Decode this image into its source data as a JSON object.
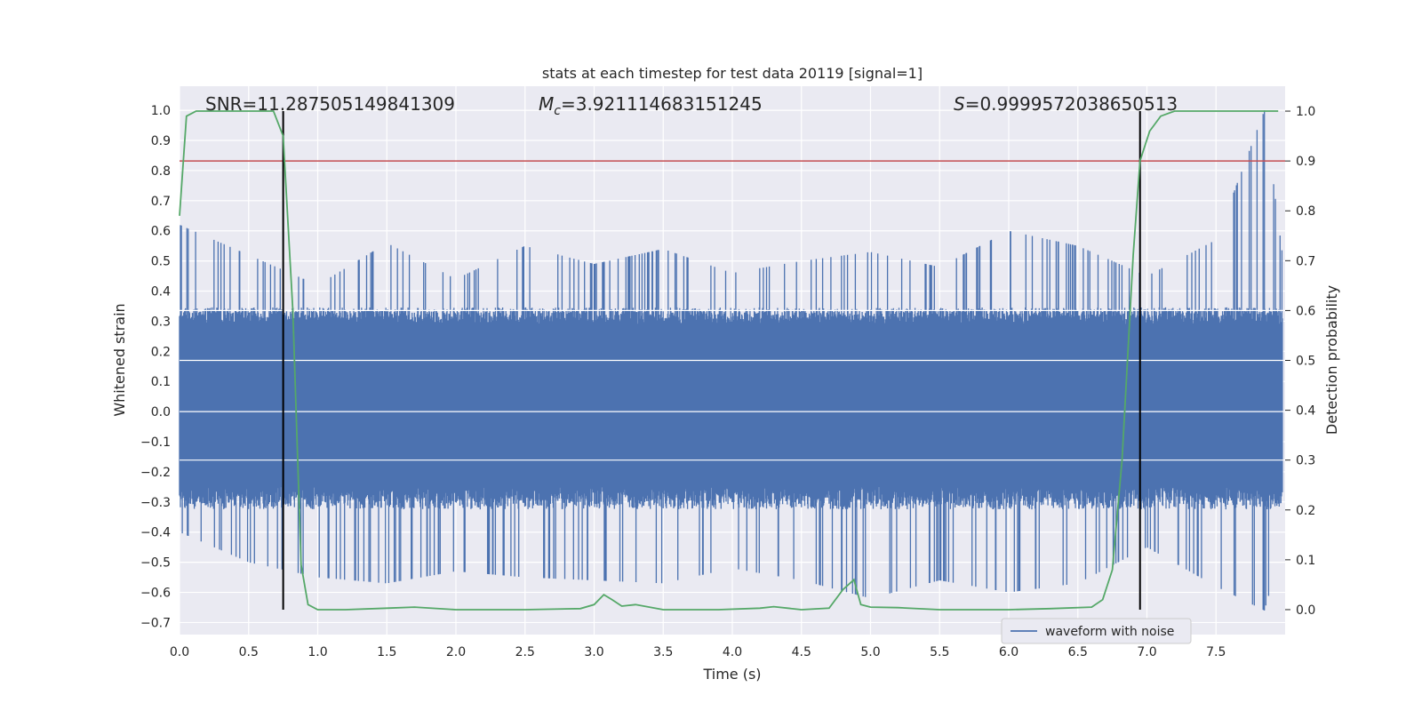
{
  "chart_data": {
    "type": "line",
    "title": "stats at each timestep for test data 20119 [signal=1]",
    "xlabel": "Time (s)",
    "ylabel": "Whitened strain",
    "y2label": "Detection probability",
    "xlim": [
      0.0,
      8.0
    ],
    "ylim": [
      -0.74,
      1.08
    ],
    "y2lim": [
      -0.05,
      1.05
    ],
    "x_ticks": [
      "0.0",
      "0.5",
      "1.0",
      "1.5",
      "2.0",
      "2.5",
      "3.0",
      "3.5",
      "4.0",
      "4.5",
      "5.0",
      "5.5",
      "6.0",
      "6.5",
      "7.0",
      "7.5"
    ],
    "y_ticks": [
      "1.0",
      "0.9",
      "0.8",
      "0.7",
      "0.6",
      "0.5",
      "0.4",
      "0.3",
      "0.2",
      "0.1",
      "0.0",
      "−0.1",
      "−0.2",
      "−0.3",
      "−0.4",
      "−0.5",
      "−0.6",
      "−0.7"
    ],
    "y2_ticks": [
      "1.0",
      "0.9",
      "0.8",
      "0.7",
      "0.6",
      "0.5",
      "0.4",
      "0.3",
      "0.2",
      "0.1",
      "0.0"
    ],
    "annotations": {
      "snr": "SNR=11.287505149841309",
      "mc_symbol": "M",
      "mc_sub": "c",
      "mc_value": "=3.921114683151245",
      "s_symbol": "S",
      "s_value": "=0.9999572038650513"
    },
    "threshold": 0.9,
    "vertical_lines_x": [
      0.75,
      6.95
    ],
    "series": [
      {
        "name": "waveform with noise",
        "axis": "left",
        "color": "#4c72b0",
        "description_values": "noise envelope approx ±0.3 with spikes up to 1.0 near t=7.85",
        "envelope": {
          "x": [
            0.0,
            0.5,
            1.0,
            1.5,
            2.0,
            2.5,
            3.0,
            3.5,
            4.0,
            4.5,
            5.0,
            5.5,
            6.0,
            6.5,
            7.0,
            7.5,
            7.85,
            8.0
          ],
          "max": [
            0.62,
            0.52,
            0.42,
            0.56,
            0.44,
            0.55,
            0.49,
            0.54,
            0.46,
            0.5,
            0.53,
            0.48,
            0.6,
            0.55,
            0.45,
            0.57,
            1.0,
            0.45
          ],
          "min": [
            -0.4,
            -0.5,
            -0.55,
            -0.57,
            -0.53,
            -0.55,
            -0.56,
            -0.57,
            -0.52,
            -0.56,
            -0.62,
            -0.56,
            -0.6,
            -0.57,
            -0.45,
            -0.58,
            -0.66,
            -0.42
          ]
        }
      },
      {
        "name": "",
        "axis": "right",
        "color": "#55a868",
        "x": [
          0.0,
          0.05,
          0.12,
          0.2,
          0.4,
          0.6,
          0.68,
          0.75,
          0.82,
          0.88,
          0.93,
          1.0,
          1.2,
          1.5,
          1.7,
          2.0,
          2.5,
          2.9,
          3.0,
          3.07,
          3.13,
          3.2,
          3.3,
          3.5,
          3.9,
          4.2,
          4.3,
          4.5,
          4.7,
          4.8,
          4.88,
          4.93,
          5.0,
          5.2,
          5.5,
          6.0,
          6.3,
          6.6,
          6.68,
          6.75,
          6.82,
          6.9,
          6.95,
          7.02,
          7.1,
          7.2,
          7.3,
          7.5,
          7.95
        ],
        "values": [
          0.79,
          0.99,
          1.0,
          1.0,
          1.0,
          1.0,
          1.0,
          0.95,
          0.6,
          0.09,
          0.01,
          0.0,
          0.0,
          0.003,
          0.005,
          0.0,
          0.0,
          0.002,
          0.01,
          0.03,
          0.02,
          0.007,
          0.01,
          0.0,
          0.0,
          0.003,
          0.006,
          0.0,
          0.003,
          0.04,
          0.06,
          0.01,
          0.005,
          0.004,
          0.0,
          0.0,
          0.002,
          0.005,
          0.02,
          0.08,
          0.3,
          0.71,
          0.9,
          0.96,
          0.99,
          1.0,
          1.0,
          1.0,
          1.0
        ]
      },
      {
        "name": "",
        "axis": "right",
        "color": "#c44e52",
        "x": [
          0.0,
          8.0
        ],
        "values": [
          0.9,
          0.9
        ]
      }
    ],
    "legend": {
      "entries": [
        "waveform with noise"
      ],
      "placement": "lower-right"
    },
    "grid": true,
    "background": "#eaeaf2"
  }
}
